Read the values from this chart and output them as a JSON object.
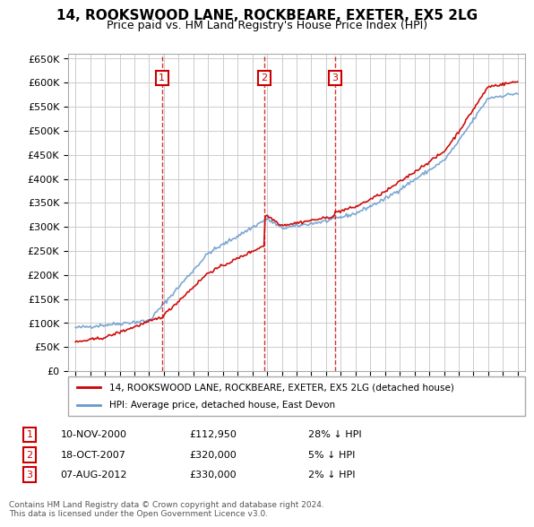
{
  "title": "14, ROOKSWOOD LANE, ROCKBEARE, EXETER, EX5 2LG",
  "subtitle": "Price paid vs. HM Land Registry's House Price Index (HPI)",
  "legend_label_red": "14, ROOKSWOOD LANE, ROCKBEARE, EXETER, EX5 2LG (detached house)",
  "legend_label_blue": "HPI: Average price, detached house, East Devon",
  "transactions": [
    {
      "num": 1,
      "date": "10-NOV-2000",
      "price": "£112,950",
      "rel": "28% ↓ HPI",
      "year": 2000.87
    },
    {
      "num": 2,
      "date": "18-OCT-2007",
      "price": "£320,000",
      "rel": "5% ↓ HPI",
      "year": 2007.8
    },
    {
      "num": 3,
      "date": "07-AUG-2012",
      "price": "£330,000",
      "rel": "2% ↓ HPI",
      "year": 2012.6
    }
  ],
  "footer": "Contains HM Land Registry data © Crown copyright and database right 2024.\nThis data is licensed under the Open Government Licence v3.0.",
  "ylim": [
    0,
    660000
  ],
  "yticks": [
    0,
    50000,
    100000,
    150000,
    200000,
    250000,
    300000,
    350000,
    400000,
    450000,
    500000,
    550000,
    600000,
    650000
  ],
  "ytick_labels": [
    "£0",
    "£50K",
    "£100K",
    "£150K",
    "£200K",
    "£250K",
    "£300K",
    "£350K",
    "£400K",
    "£450K",
    "£500K",
    "£550K",
    "£600K",
    "£650K"
  ],
  "red_color": "#cc0000",
  "blue_color": "#6699cc",
  "grid_color": "#cccccc",
  "background_color": "#ffffff",
  "transaction_line_color": "#cc0000",
  "transaction_box_color": "#cc0000"
}
